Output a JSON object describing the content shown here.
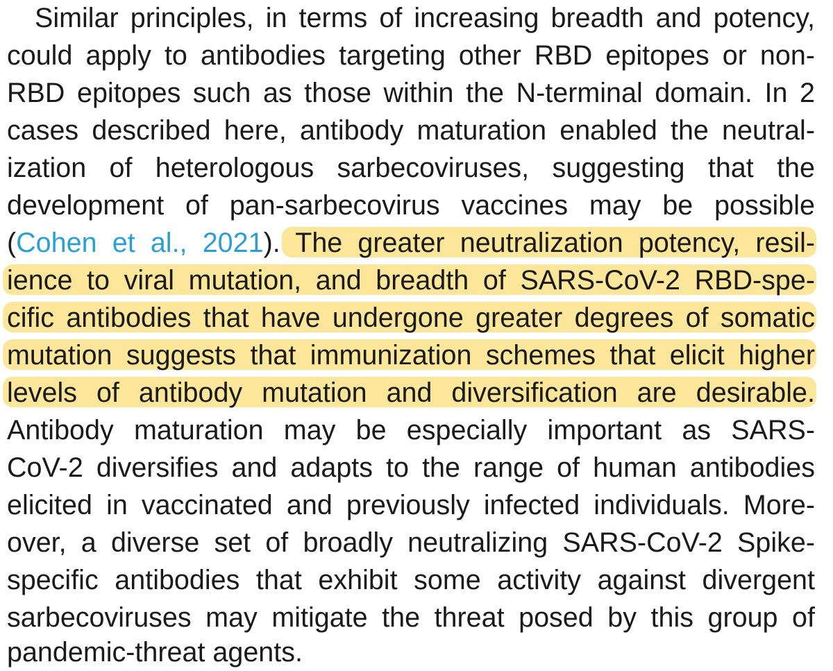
{
  "paragraph": {
    "lines": [
      "Similar principles, in terms of increasing breadth and potency,",
      "could apply to antibodies targeting other RBD epitopes or non-",
      "RBD epitopes such as those within the N-terminal domain. In 2",
      "cases described here, antibody maturation enabled the neutral-",
      "ization of heterologous sarbecoviruses, suggesting that the",
      "development of pan-sarbecovirus vaccines may be possible"
    ],
    "line7_pre": "(",
    "citation": "Cohen et al., 2021",
    "line7_post": ").",
    "line7_highlight": "The greater neutralization potency, resil-",
    "highlight_lines": [
      "ience to viral mutation, and breadth of SARS-CoV-2 RBD-spe-",
      "cific antibodies that have undergone greater degrees of somatic",
      "mutation suggests that immunization schemes that elicit higher",
      "levels of antibody mutation and diversification are desirable."
    ],
    "tail_lines": [
      "Antibody maturation may be especially important as SARS-",
      "CoV-2 diversifies and adapts to the range of human antibodies",
      "elicited in vaccinated and previously infected individuals. More-",
      "over, a diverse set of broadly neutralizing SARS-CoV-2 Spike-",
      "specific antibodies that exhibit some activity against divergent",
      "sarbecoviruses may mitigate the threat posed by this group of",
      "pandemic-threat agents."
    ]
  },
  "colors": {
    "highlight": "#fbe69a",
    "citation_link": "#2a9fd6",
    "text": "#1a1a1a"
  }
}
